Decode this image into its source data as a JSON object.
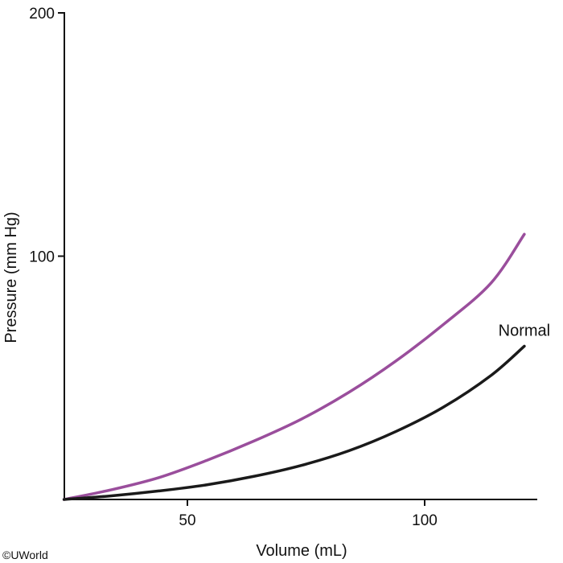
{
  "chart_data": {
    "type": "line",
    "title": "",
    "xlabel": "Volume (mL)",
    "ylabel": "Pressure (mm Hg)",
    "xlim": [
      24,
      124
    ],
    "ylim": [
      0,
      200
    ],
    "x_ticks": [
      50,
      100
    ],
    "y_ticks": [
      100,
      200
    ],
    "grid": false,
    "series": [
      {
        "color": "#9a4e9c",
        "points": [
          [
            24,
            0
          ],
          [
            34,
            4
          ],
          [
            44,
            9
          ],
          [
            54,
            16
          ],
          [
            64,
            24
          ],
          [
            74,
            33
          ],
          [
            84,
            44
          ],
          [
            94,
            57
          ],
          [
            104,
            72
          ],
          [
            114,
            89
          ],
          [
            121,
            109
          ]
        ]
      },
      {
        "name": "Normal",
        "color": "#1a1a1a",
        "points": [
          [
            24,
            0
          ],
          [
            34,
            1.5
          ],
          [
            44,
            3.5
          ],
          [
            54,
            6
          ],
          [
            64,
            9.5
          ],
          [
            74,
            14
          ],
          [
            84,
            20
          ],
          [
            94,
            28
          ],
          [
            104,
            38
          ],
          [
            114,
            51
          ],
          [
            121,
            63
          ]
        ]
      }
    ]
  },
  "copyright": "©UWorld"
}
